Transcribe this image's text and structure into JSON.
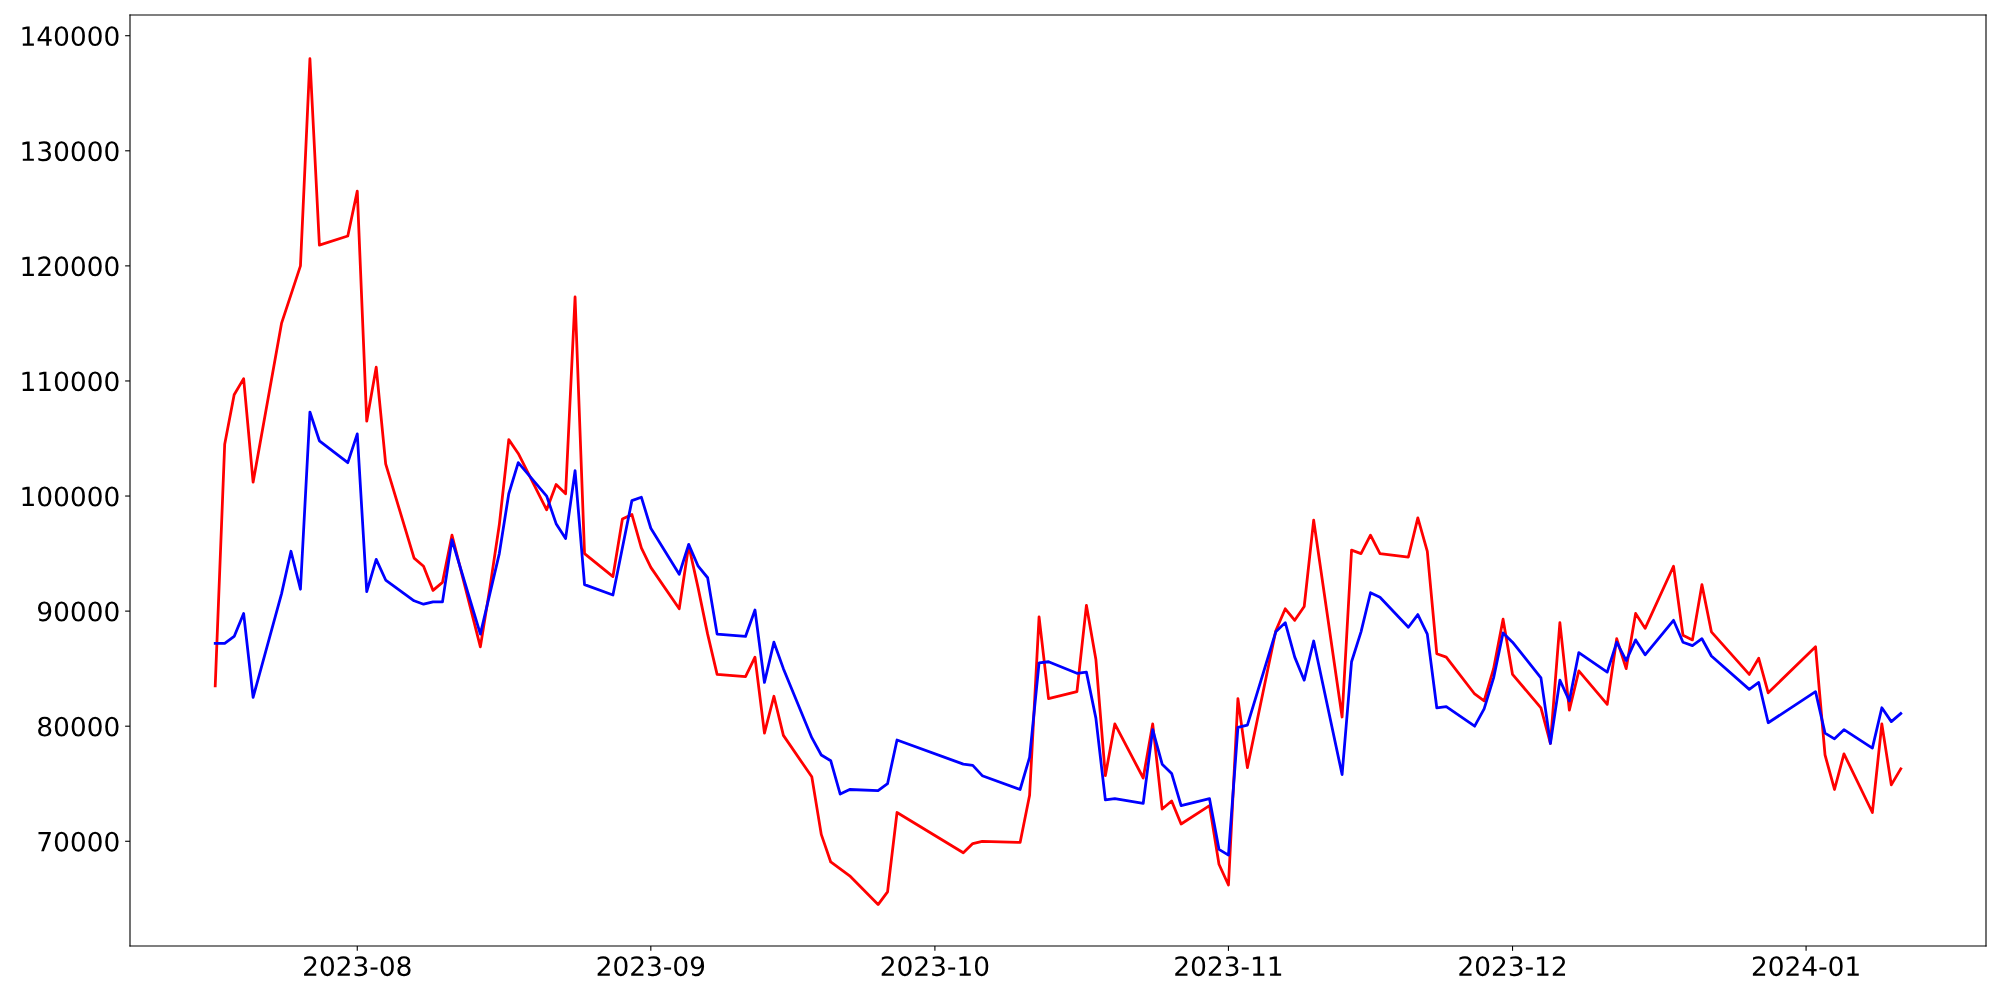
{
  "chart_data": {
    "type": "line",
    "x": [
      "2023-07-17",
      "2023-07-18",
      "2023-07-19",
      "2023-07-20",
      "2023-07-21",
      "2023-07-24",
      "2023-07-25",
      "2023-07-26",
      "2023-07-27",
      "2023-07-28",
      "2023-07-31",
      "2023-08-01",
      "2023-08-02",
      "2023-08-03",
      "2023-08-04",
      "2023-08-07",
      "2023-08-08",
      "2023-08-09",
      "2023-08-10",
      "2023-08-11",
      "2023-08-14",
      "2023-08-15",
      "2023-08-16",
      "2023-08-17",
      "2023-08-18",
      "2023-08-21",
      "2023-08-22",
      "2023-08-23",
      "2023-08-24",
      "2023-08-25",
      "2023-08-28",
      "2023-08-29",
      "2023-08-30",
      "2023-08-31",
      "2023-09-01",
      "2023-09-04",
      "2023-09-05",
      "2023-09-06",
      "2023-09-07",
      "2023-09-08",
      "2023-09-11",
      "2023-09-12",
      "2023-09-13",
      "2023-09-14",
      "2023-09-15",
      "2023-09-18",
      "2023-09-19",
      "2023-09-20",
      "2023-09-21",
      "2023-09-22",
      "2023-09-25",
      "2023-09-26",
      "2023-09-27",
      "2023-10-04",
      "2023-10-05",
      "2023-10-06",
      "2023-10-10",
      "2023-10-11",
      "2023-10-12",
      "2023-10-13",
      "2023-10-16",
      "2023-10-17",
      "2023-10-18",
      "2023-10-19",
      "2023-10-20",
      "2023-10-23",
      "2023-10-24",
      "2023-10-25",
      "2023-10-26",
      "2023-10-27",
      "2023-10-30",
      "2023-10-31",
      "2023-11-01",
      "2023-11-02",
      "2023-11-03",
      "2023-11-06",
      "2023-11-07",
      "2023-11-08",
      "2023-11-09",
      "2023-11-10",
      "2023-11-13",
      "2023-11-14",
      "2023-11-15",
      "2023-11-16",
      "2023-11-17",
      "2023-11-20",
      "2023-11-21",
      "2023-11-22",
      "2023-11-23",
      "2023-11-24",
      "2023-11-27",
      "2023-11-28",
      "2023-11-29",
      "2023-11-30",
      "2023-12-01",
      "2023-12-04",
      "2023-12-05",
      "2023-12-06",
      "2023-12-07",
      "2023-12-08",
      "2023-12-11",
      "2023-12-12",
      "2023-12-13",
      "2023-12-14",
      "2023-12-15",
      "2023-12-18",
      "2023-12-19",
      "2023-12-20",
      "2023-12-21",
      "2023-12-22",
      "2023-12-26",
      "2023-12-27",
      "2023-12-28",
      "2024-01-02",
      "2024-01-03",
      "2024-01-04",
      "2024-01-05",
      "2024-01-08",
      "2024-01-09",
      "2024-01-10",
      "2024-01-11"
    ],
    "series": [
      {
        "color": "#ff0000",
        "values": [
          83500,
          104500,
          108800,
          110200,
          101200,
          115000,
          117500,
          120000,
          138000,
          121800,
          122600,
          126500,
          106500,
          111200,
          102800,
          94600,
          93900,
          91800,
          92500,
          96600,
          86900,
          92000,
          97500,
          104900,
          103700,
          98800,
          101000,
          100200,
          117300,
          95000,
          93000,
          98000,
          98400,
          95500,
          93800,
          90200,
          95700,
          92000,
          88000,
          84500,
          84300,
          86000,
          79400,
          82600,
          79200,
          75600,
          70600,
          68200,
          67600,
          67000,
          64500,
          65600,
          72500,
          69000,
          69800,
          70000,
          69900,
          74000,
          89500,
          82400,
          83000,
          90500,
          85800,
          75700,
          80200,
          75500,
          80200,
          72800,
          73500,
          71500,
          73100,
          68000,
          66200,
          82400,
          76400,
          88300,
          90200,
          89200,
          90400,
          97900,
          80800,
          95300,
          95000,
          96600,
          95000,
          94700,
          98100,
          95200,
          86300,
          86000,
          82800,
          82200,
          85000,
          89300,
          84500,
          81600,
          78500,
          89000,
          81400,
          84800,
          81900,
          87600,
          85000,
          89800,
          88500,
          93900,
          87900,
          87500,
          92300,
          88200,
          84500,
          85900,
          82900,
          86900,
          77500,
          74500,
          77600,
          72500,
          80200,
          74900,
          76300
        ]
      },
      {
        "color": "#0000ff",
        "values": [
          87200,
          87200,
          87800,
          89800,
          82500,
          91500,
          95200,
          91900,
          107300,
          104800,
          102900,
          105400,
          91700,
          94500,
          92700,
          90900,
          90600,
          90800,
          90800,
          96200,
          88000,
          91500,
          95000,
          100200,
          102900,
          100000,
          97600,
          96300,
          102200,
          92300,
          91400,
          95500,
          99600,
          99900,
          97200,
          93200,
          95800,
          93900,
          92900,
          88000,
          87800,
          90100,
          83800,
          87300,
          85000,
          79000,
          77500,
          77000,
          74100,
          74500,
          74400,
          75000,
          78800,
          76700,
          76600,
          75700,
          74500,
          77300,
          85500,
          85600,
          84600,
          84700,
          80700,
          73600,
          73700,
          73300,
          79700,
          76700,
          75900,
          73100,
          73700,
          69300,
          68800,
          79900,
          80100,
          88200,
          89000,
          86000,
          84000,
          87400,
          75800,
          85600,
          88200,
          91600,
          91200,
          88600,
          89700,
          88000,
          81600,
          81700,
          80000,
          81500,
          84200,
          88100,
          87300,
          84200,
          78500,
          84000,
          82200,
          86400,
          84700,
          87300,
          85700,
          87500,
          86200,
          89200,
          87300,
          87000,
          87600,
          86100,
          83200,
          83800,
          80300,
          83000,
          79400,
          78900,
          79700,
          78100,
          81600,
          80400,
          81100
        ]
      }
    ],
    "xlim": [
      "2023-07-08",
      "2024-01-20"
    ],
    "xticks": [
      {
        "value": "2023-08-01",
        "label": "2023-08"
      },
      {
        "value": "2023-09-01",
        "label": "2023-09"
      },
      {
        "value": "2023-10-01",
        "label": "2023-10"
      },
      {
        "value": "2023-11-01",
        "label": "2023-11"
      },
      {
        "value": "2023-12-01",
        "label": "2023-12"
      },
      {
        "value": "2024-01-01",
        "label": "2024-01"
      }
    ],
    "ylim": [
      60900,
      141800
    ],
    "yticks": [
      70000,
      80000,
      90000,
      100000,
      110000,
      120000,
      130000,
      140000
    ],
    "grid": false,
    "marker": "none",
    "line_style": "solid"
  }
}
